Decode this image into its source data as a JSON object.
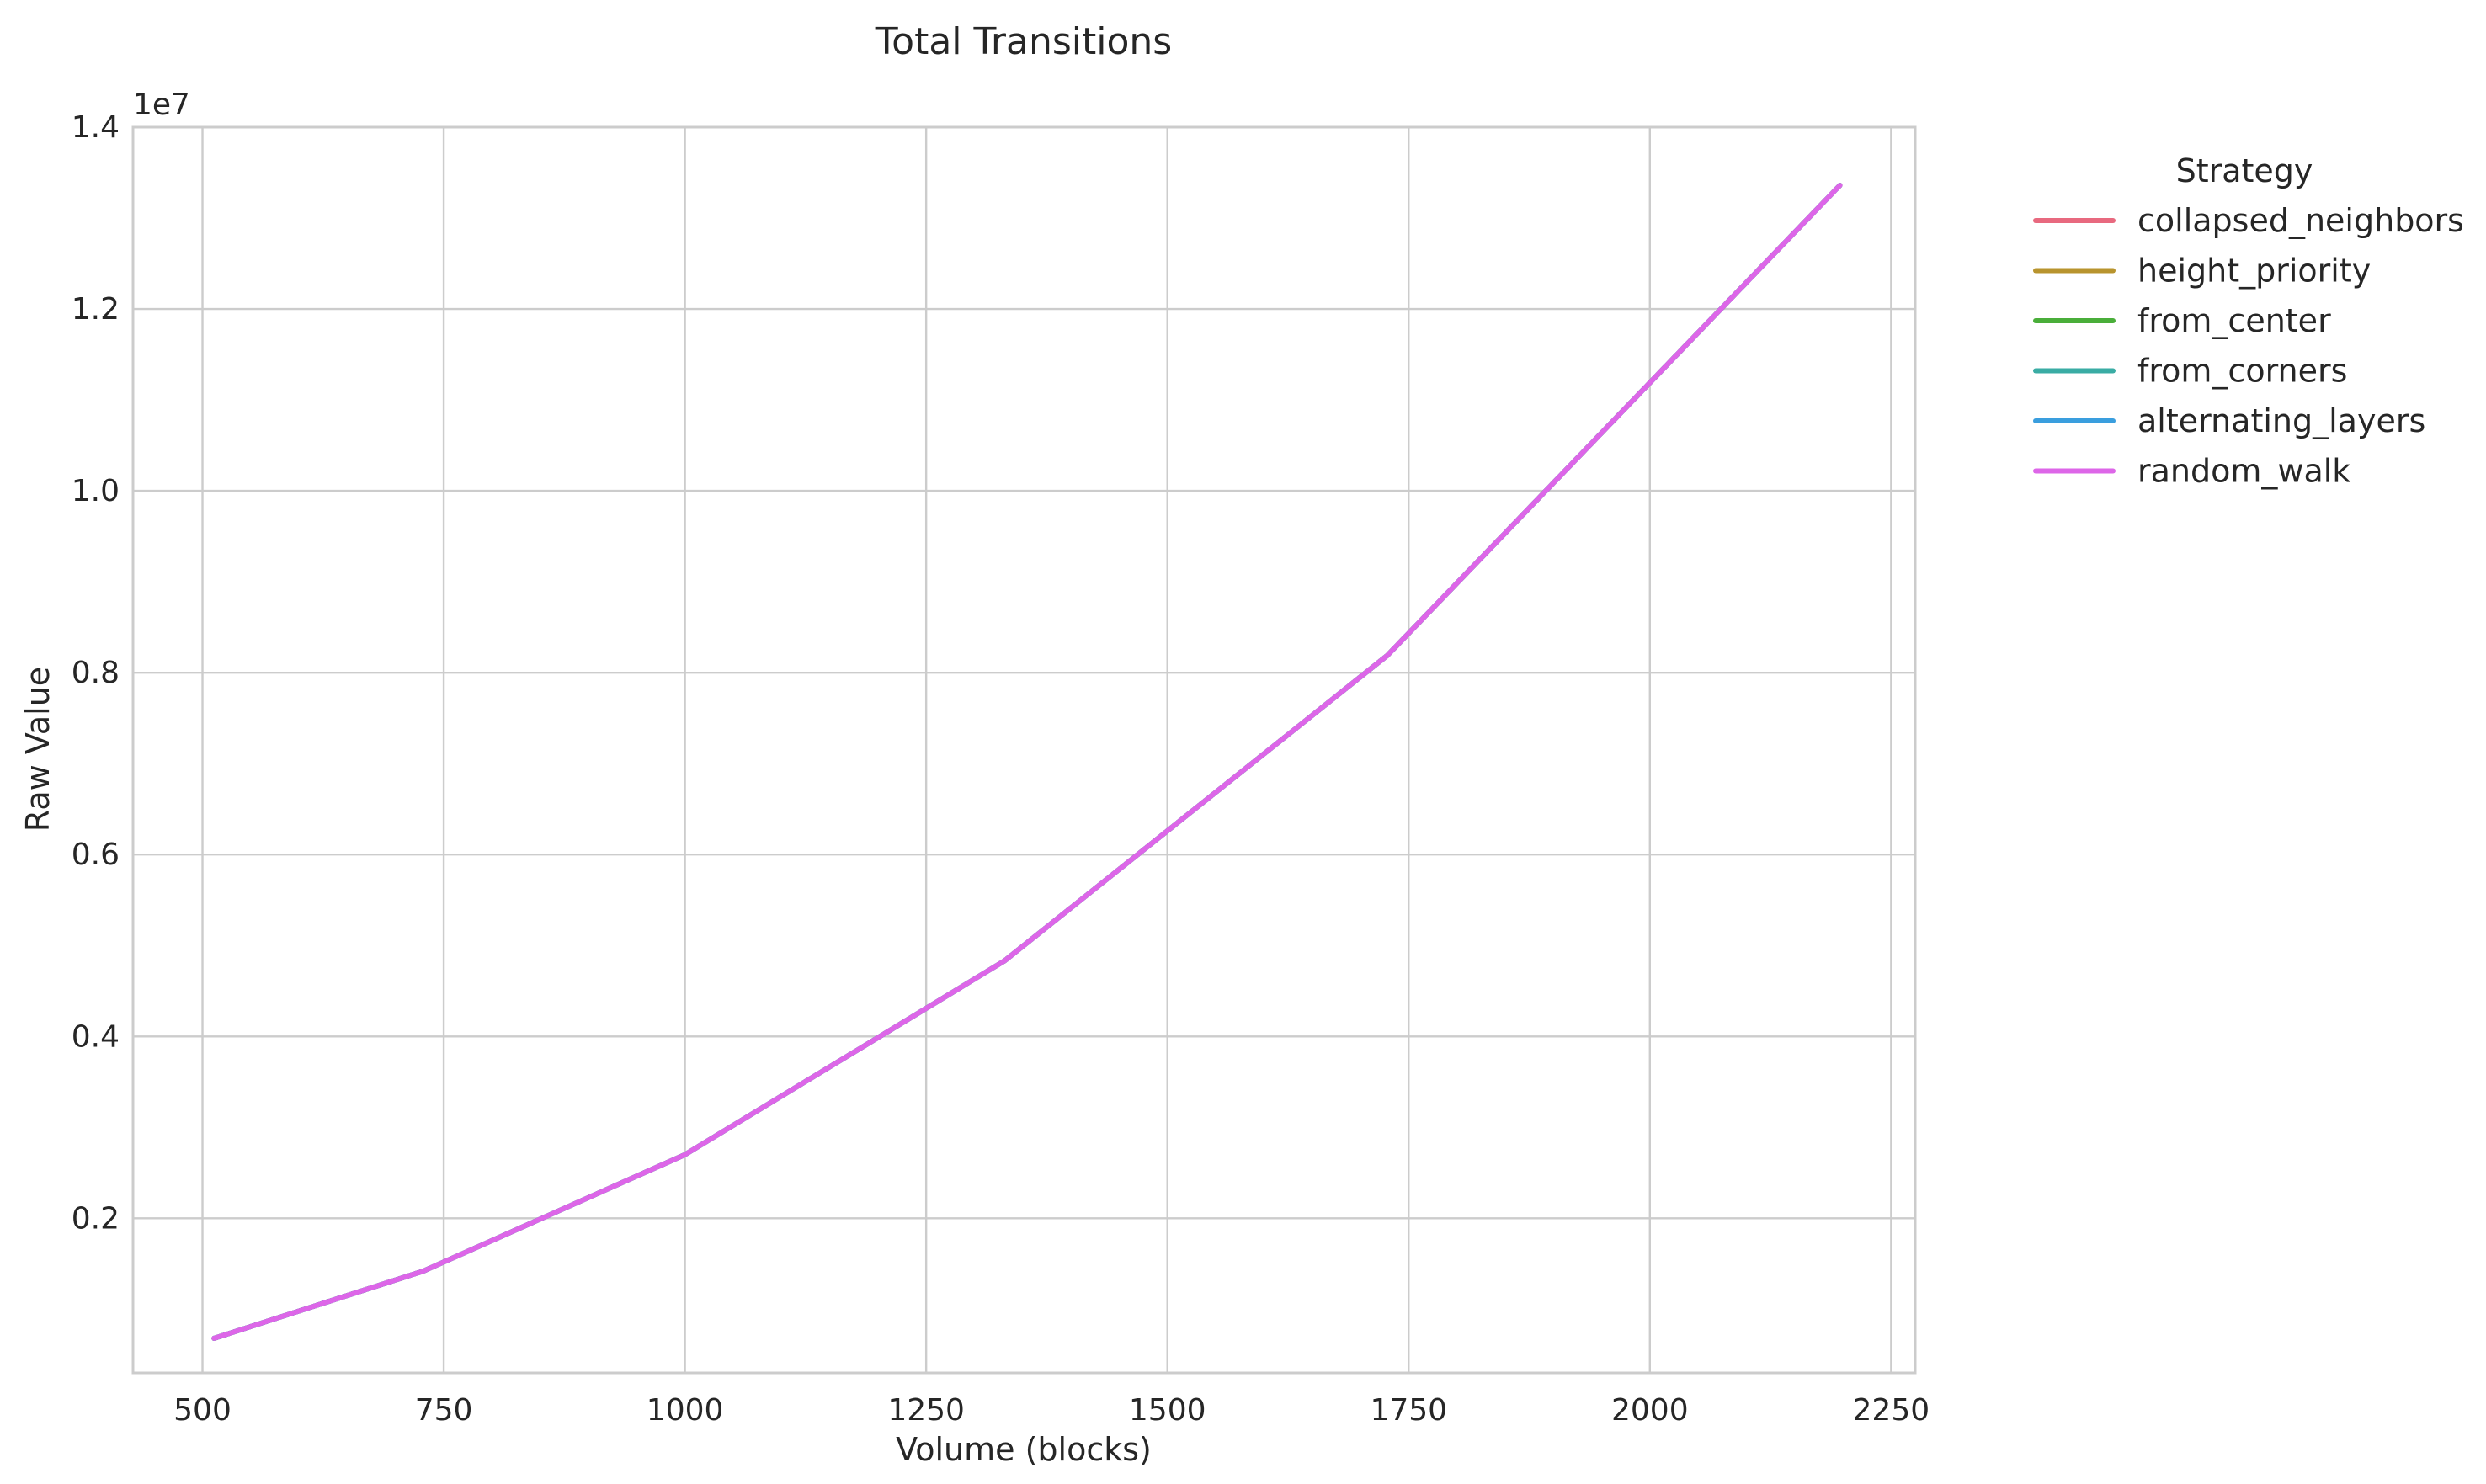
{
  "chart_data": {
    "type": "line",
    "title": "Total Transitions",
    "xlabel": "Volume (blocks)",
    "ylabel": "Raw Value",
    "y_offset_label": "1e7",
    "xlim": [
      428,
      2275
    ],
    "ylim": [
      0.03,
      1.4
    ],
    "xticks": [
      500,
      750,
      1000,
      1250,
      1500,
      1750,
      2000,
      2250
    ],
    "xtick_labels": [
      "500",
      "750",
      "1000",
      "1250",
      "1500",
      "1750",
      "2000",
      "2250"
    ],
    "yticks": [
      0.2,
      0.4,
      0.6,
      0.8,
      1.0,
      1.2,
      1.4
    ],
    "ytick_labels": [
      "0.2",
      "0.4",
      "0.6",
      "0.8",
      "1.0",
      "1.2",
      "1.4"
    ],
    "grid": true,
    "legend": {
      "title": "Strategy",
      "placement": "outside-right"
    },
    "x": [
      512,
      729,
      1000,
      1331,
      1728,
      2197
    ],
    "series": [
      {
        "name": "collapsed_neighbors",
        "color": "#e8697f",
        "values": [
          0.068,
          0.142,
          0.27,
          0.483,
          0.819,
          1.336
        ]
      },
      {
        "name": "height_priority",
        "color": "#b8942e",
        "values": [
          0.068,
          0.142,
          0.27,
          0.483,
          0.819,
          1.336
        ]
      },
      {
        "name": "from_center",
        "color": "#4aae3a",
        "values": [
          0.068,
          0.142,
          0.27,
          0.483,
          0.819,
          1.336
        ]
      },
      {
        "name": "from_corners",
        "color": "#3aaca4",
        "values": [
          0.068,
          0.142,
          0.27,
          0.483,
          0.819,
          1.336
        ]
      },
      {
        "name": "alternating_layers",
        "color": "#3a9ede",
        "values": [
          0.068,
          0.142,
          0.27,
          0.483,
          0.819,
          1.336
        ]
      },
      {
        "name": "random_walk",
        "color": "#dd66e8",
        "values": [
          0.068,
          0.142,
          0.27,
          0.483,
          0.819,
          1.336
        ]
      }
    ]
  }
}
